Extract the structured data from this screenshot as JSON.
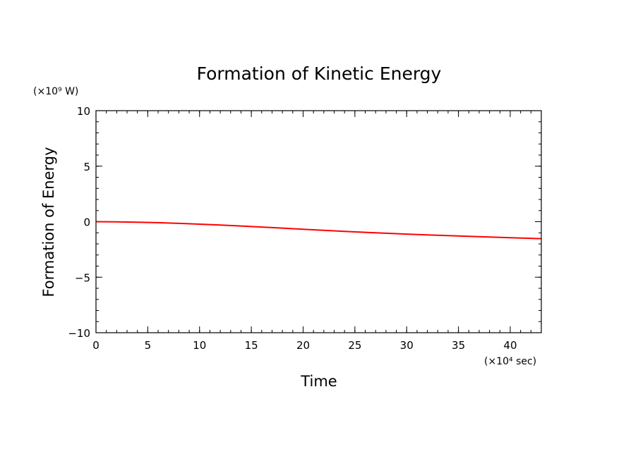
{
  "chart_data": {
    "type": "line",
    "title": "Formation of Kinetic Energy",
    "xlabel": "Time",
    "ylabel": "Formation of Energy",
    "x_unit": "(×10⁴ sec)",
    "y_unit": "(×10⁹ W)",
    "xlim": [
      0,
      43
    ],
    "ylim": [
      -10,
      10
    ],
    "xticks": [
      0,
      5,
      10,
      15,
      20,
      25,
      30,
      35,
      40
    ],
    "xtick_labels": [
      "0",
      "5",
      "10",
      "15",
      "20",
      "25",
      "30",
      "35",
      "40"
    ],
    "yticks": [
      -10,
      -5,
      0,
      5,
      10
    ],
    "ytick_labels": [
      "−10",
      "−5",
      "0",
      "5",
      "10"
    ],
    "grid": false,
    "series": [
      {
        "color": "#ff0000",
        "x": [
          0,
          2,
          4,
          6,
          8,
          10,
          12,
          14,
          16,
          18,
          20,
          22,
          24,
          26,
          28,
          30,
          32,
          34,
          36,
          38,
          40,
          42,
          43
        ],
        "y": [
          0.0,
          -0.02,
          -0.05,
          -0.09,
          -0.15,
          -0.22,
          -0.3,
          -0.39,
          -0.48,
          -0.58,
          -0.68,
          -0.78,
          -0.87,
          -0.96,
          -1.04,
          -1.12,
          -1.19,
          -1.26,
          -1.32,
          -1.38,
          -1.44,
          -1.5,
          -1.53
        ]
      }
    ]
  }
}
